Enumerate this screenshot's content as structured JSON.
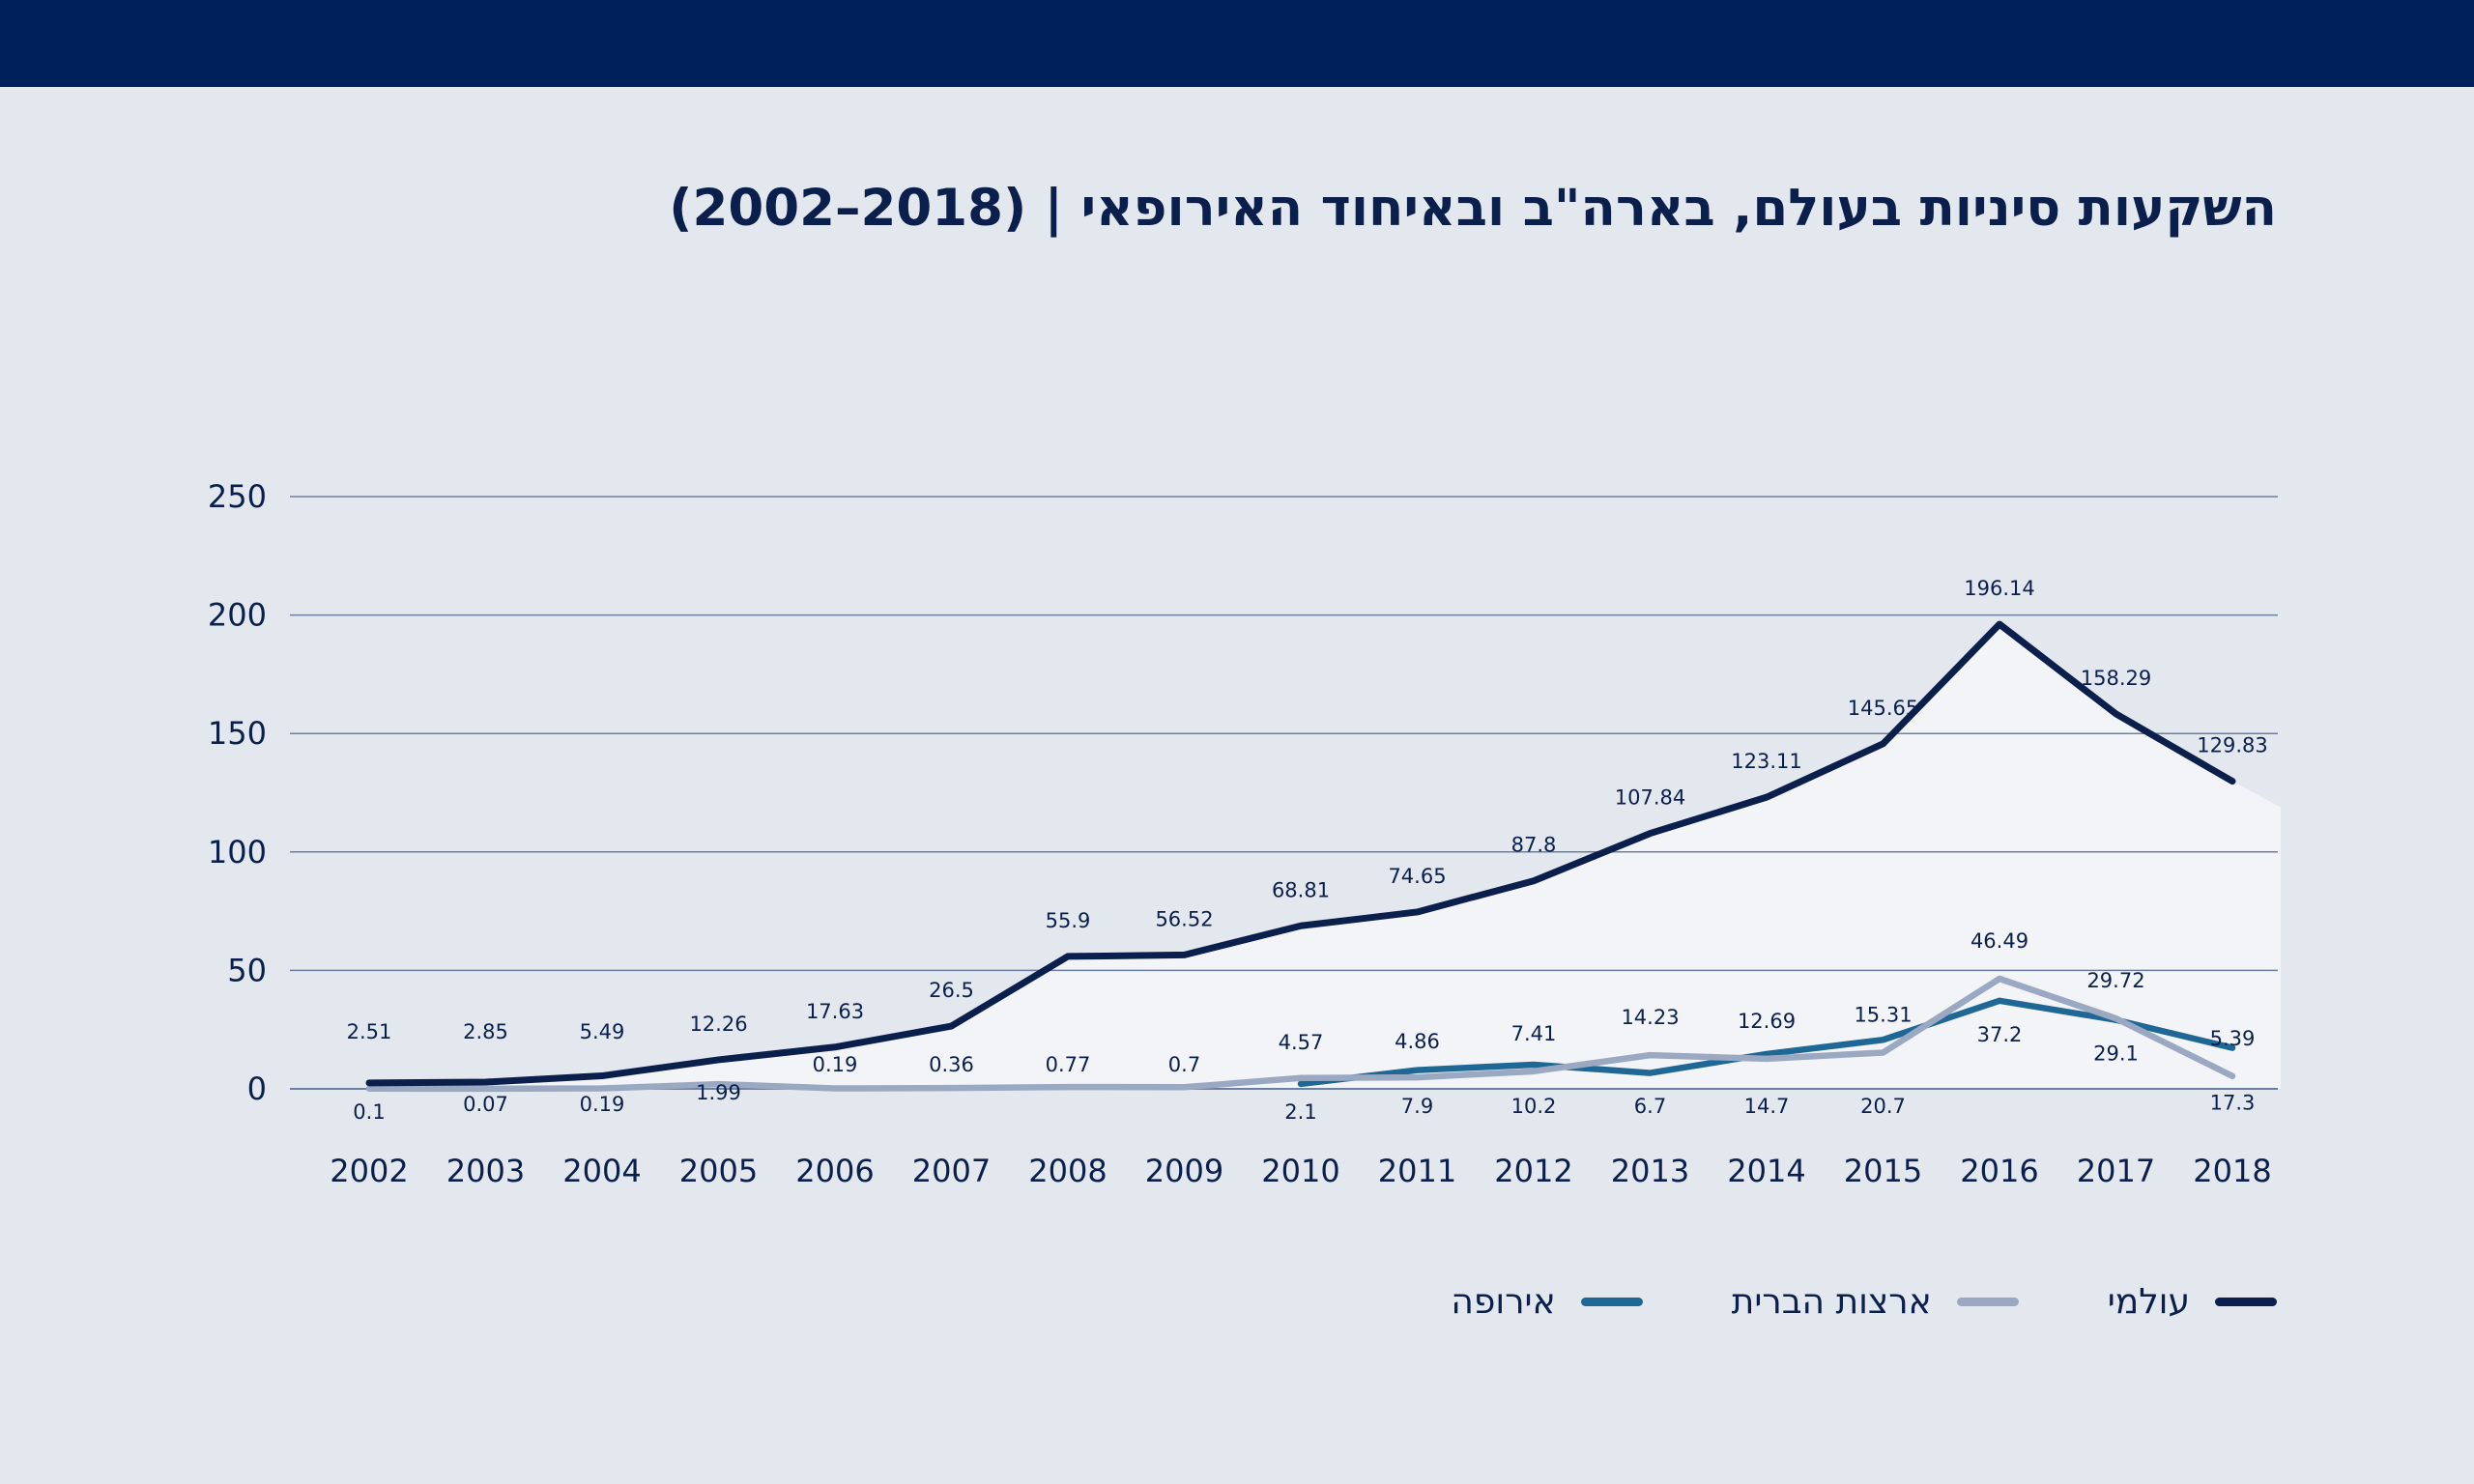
{
  "title": "השקעות סיניות בעולם, בארה\"ב ובאיחוד האירופאי | (2018–2002)",
  "legend": {
    "world": "עולמי",
    "usa": "ארצות הברית",
    "europe": "אירופה"
  },
  "colors": {
    "header": "#00205b",
    "background": "#e3e8ef",
    "world": "#0b1f4d",
    "usa": "#9aa8c2",
    "europe": "#1f6795",
    "area": "#f2f4f8",
    "grid": "#6a7fa3"
  },
  "chart_data": {
    "type": "line",
    "title": "השקעות סיניות בעולם, בארה\"ב ובאיחוד האירופאי | (2018–2002)",
    "xlabel": "",
    "ylabel": "",
    "ylim": [
      0,
      250
    ],
    "yticks": [
      0,
      50,
      100,
      150,
      200,
      250
    ],
    "grid": true,
    "legend_position": "bottom-right",
    "x": [
      "2002",
      "2003",
      "2004",
      "2005",
      "2006",
      "2007",
      "2008",
      "2009",
      "2010",
      "2011",
      "2012",
      "2013",
      "2014",
      "2015",
      "2016",
      "2017",
      "2018"
    ],
    "series": [
      {
        "name": "עולמי",
        "key": "world",
        "values": [
          2.51,
          2.85,
          5.49,
          12.26,
          17.63,
          26.5,
          55.9,
          56.52,
          68.81,
          74.65,
          87.8,
          107.84,
          123.11,
          145.65,
          196.14,
          158.29,
          129.83
        ]
      },
      {
        "name": "ארצות הברית",
        "key": "usa",
        "values": [
          0.1,
          0.07,
          0.19,
          1.99,
          0.19,
          0.36,
          0.77,
          0.7,
          4.57,
          4.86,
          7.41,
          14.23,
          12.69,
          15.31,
          46.49,
          29.72,
          5.39
        ]
      },
      {
        "name": "אירופה",
        "key": "europe",
        "values": [
          null,
          null,
          null,
          null,
          null,
          null,
          null,
          null,
          2.1,
          7.9,
          10.2,
          6.7,
          14.7,
          20.7,
          37.2,
          29.1,
          17.3
        ]
      }
    ]
  }
}
